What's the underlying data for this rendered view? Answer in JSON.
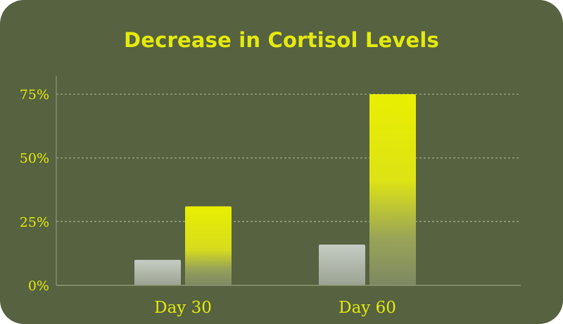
{
  "chart_data": {
    "type": "bar",
    "title": "Decrease in Cortisol Levels",
    "xlabel": "",
    "ylabel": "",
    "categories": [
      "Day 30",
      "Day 60"
    ],
    "series": [
      {
        "values": [
          10,
          16
        ]
      },
      {
        "values": [
          31,
          75
        ]
      }
    ],
    "ylim": [
      0,
      75
    ],
    "yticks": [
      0,
      25,
      50,
      75
    ],
    "ytick_labels": [
      "0%",
      "25%",
      "50%",
      "75%"
    ],
    "grid": true,
    "legend": "none"
  },
  "colors": {
    "background": "#566240",
    "title": "#e4ea0c",
    "text": "#e4ea0c",
    "grid": "#9ea582",
    "axis": "#8f9873",
    "series_light_top": "#c5ccc3",
    "series_light_bottom": "#87916f",
    "series_bright_top": "#e9ef00",
    "series_bright_bottom": "#7d8863"
  }
}
